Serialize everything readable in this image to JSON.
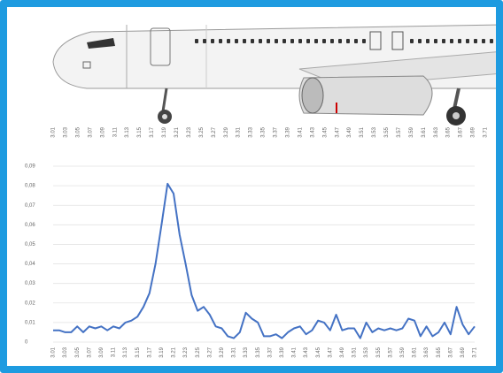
{
  "aircraft_stations": [
    "3.01",
    "3.03",
    "3.05",
    "3.07",
    "3.09",
    "3.11",
    "3.13",
    "3.15",
    "3.17",
    "3.19",
    "3.21",
    "3.23",
    "3.25",
    "3.27",
    "3.29",
    "3.31",
    "3.33",
    "3.35",
    "3.37",
    "3.39",
    "3.41",
    "3.43",
    "3.45",
    "3.47",
    "3.49",
    "3.51",
    "3.53",
    "3.55",
    "3.57",
    "3.59",
    "3.61",
    "3.63",
    "3.65",
    "3.67",
    "3.69",
    "3.71"
  ],
  "chart_data": {
    "type": "line",
    "categories": [
      "3.01",
      null,
      "3.03",
      null,
      "3.05",
      null,
      "3.07",
      null,
      "3.09",
      null,
      "3.11",
      null,
      "3.13",
      null,
      "3.15",
      null,
      "3.17",
      null,
      "3.19",
      null,
      "3.21",
      null,
      "3.23",
      null,
      "3.25",
      null,
      "3.27",
      null,
      "3.29",
      null,
      "3.31",
      null,
      "3.33",
      null,
      "3.35",
      null,
      "3.37",
      null,
      "3.39",
      null,
      "3.41",
      null,
      "3.43",
      null,
      "3.45",
      null,
      "3.47",
      null,
      "3.49",
      null,
      "3.51",
      null,
      "3.53",
      null,
      "3.55",
      null,
      "3.57",
      null,
      "3.59",
      null,
      "3.61",
      null,
      "3.63",
      null,
      "3.65",
      null,
      "3.67",
      null,
      "3.69",
      null,
      "3.71"
    ],
    "values": [
      0.006,
      0.006,
      0.005,
      0.005,
      0.008,
      0.005,
      0.008,
      0.007,
      0.008,
      0.006,
      0.008,
      0.007,
      0.01,
      0.011,
      0.013,
      0.018,
      0.025,
      0.04,
      0.06,
      0.081,
      0.076,
      0.055,
      0.04,
      0.024,
      0.016,
      0.018,
      0.014,
      0.008,
      0.007,
      0.003,
      0.002,
      0.005,
      0.015,
      0.012,
      0.01,
      0.003,
      0.003,
      0.004,
      0.002,
      0.005,
      0.007,
      0.008,
      0.004,
      0.006,
      0.011,
      0.01,
      0.006,
      0.014,
      0.006,
      0.007,
      0.007,
      0.002,
      0.01,
      0.005,
      0.007,
      0.006,
      0.007,
      0.006,
      0.007,
      0.012,
      0.011,
      0.003,
      0.008,
      0.003,
      0.005,
      0.01,
      0.004,
      0.018,
      0.009,
      0.004,
      0.008
    ],
    "color": "#4472c4",
    "ylim": [
      0,
      0.09
    ],
    "yticks": [
      {
        "value": 0,
        "label": "0"
      },
      {
        "value": 0.01,
        "label": "0,01"
      },
      {
        "value": 0.02,
        "label": "0,02"
      },
      {
        "value": 0.03,
        "label": "0,03"
      },
      {
        "value": 0.04,
        "label": "0,04"
      },
      {
        "value": 0.05,
        "label": "0,05"
      },
      {
        "value": 0.06,
        "label": "0,06"
      },
      {
        "value": 0.07,
        "label": "0,07"
      },
      {
        "value": 0.08,
        "label": "0,08"
      },
      {
        "value": 0.09,
        "label": "0,09"
      }
    ],
    "grid": true
  }
}
